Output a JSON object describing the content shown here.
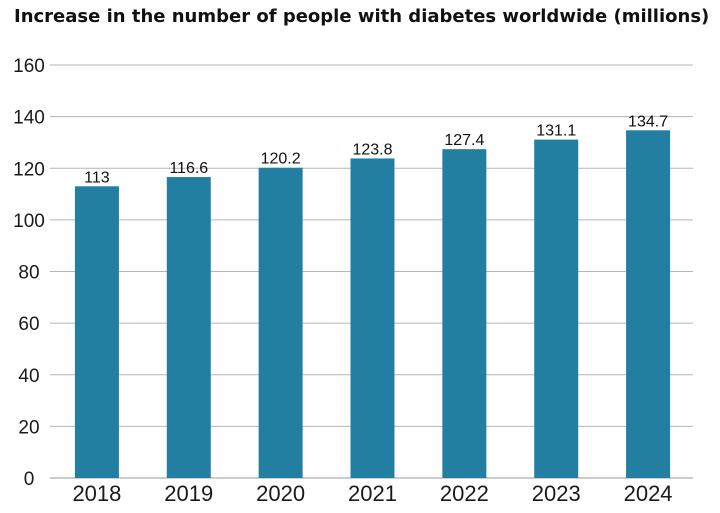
{
  "chart_data": {
    "type": "bar",
    "title": "Increase in the number of people with diabetes worldwide (millions)",
    "categories": [
      "2018",
      "2019",
      "2020",
      "2021",
      "2022",
      "2023",
      "2024"
    ],
    "values": [
      113,
      116.6,
      120.2,
      123.8,
      127.4,
      131.1,
      134.7
    ],
    "data_labels": [
      "113",
      "116.6",
      "120.2",
      "123.8",
      "127.4",
      "131.1",
      "134.7"
    ],
    "yticks": [
      0,
      20,
      40,
      60,
      80,
      100,
      120,
      140,
      160
    ],
    "ylim": [
      0,
      160
    ],
    "xlabel": "",
    "ylabel": "",
    "grid": true,
    "legend": "none",
    "bar_color": "#237fa1"
  }
}
